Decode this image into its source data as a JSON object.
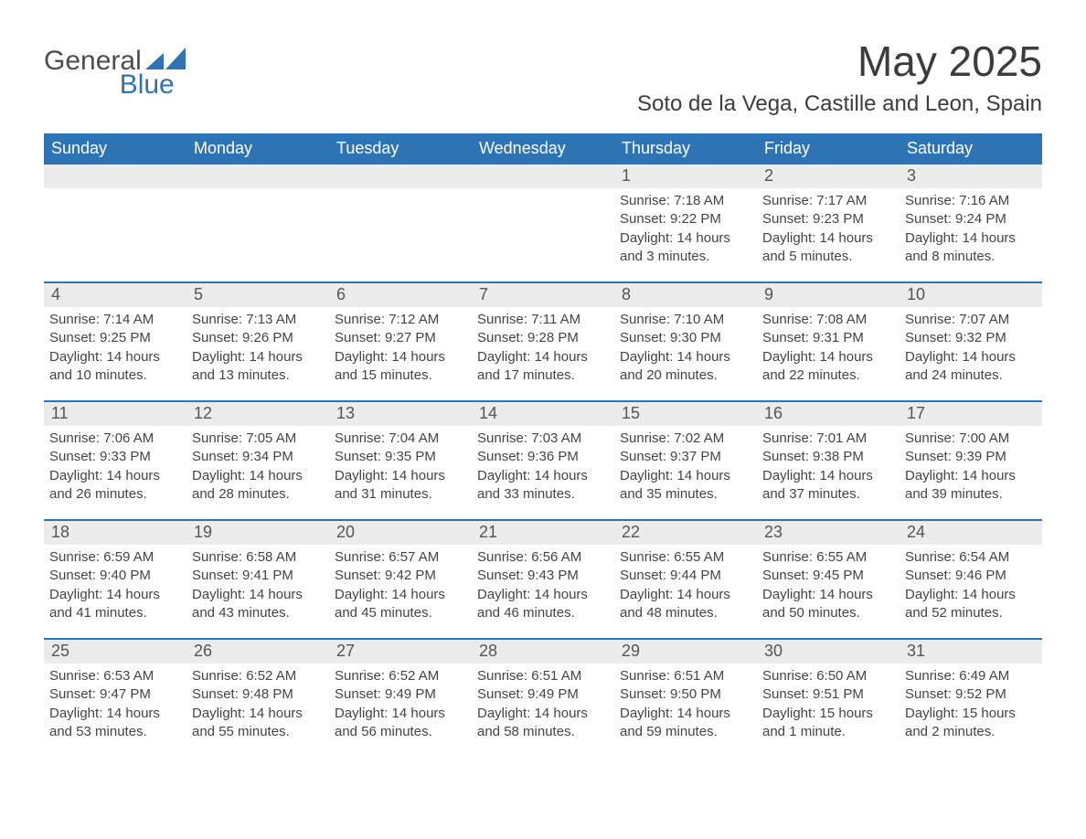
{
  "brand": {
    "word1": "General",
    "word2": "Blue"
  },
  "colors": {
    "accent": "#2e74b5",
    "header_text": "#ffffff",
    "datebar_bg": "#ececec",
    "text": "#3f3f3f",
    "background": "#ffffff"
  },
  "title": "May 2025",
  "location": "Soto de la Vega, Castille and Leon, Spain",
  "days_of_week": [
    "Sunday",
    "Monday",
    "Tuesday",
    "Wednesday",
    "Thursday",
    "Friday",
    "Saturday"
  ],
  "weeks": [
    [
      {
        "blank": true
      },
      {
        "blank": true
      },
      {
        "blank": true
      },
      {
        "blank": true
      },
      {
        "n": "1",
        "sr": "7:18 AM",
        "ss": "9:22 PM",
        "dl": "14 hours and 3 minutes."
      },
      {
        "n": "2",
        "sr": "7:17 AM",
        "ss": "9:23 PM",
        "dl": "14 hours and 5 minutes."
      },
      {
        "n": "3",
        "sr": "7:16 AM",
        "ss": "9:24 PM",
        "dl": "14 hours and 8 minutes."
      }
    ],
    [
      {
        "n": "4",
        "sr": "7:14 AM",
        "ss": "9:25 PM",
        "dl": "14 hours and 10 minutes."
      },
      {
        "n": "5",
        "sr": "7:13 AM",
        "ss": "9:26 PM",
        "dl": "14 hours and 13 minutes."
      },
      {
        "n": "6",
        "sr": "7:12 AM",
        "ss": "9:27 PM",
        "dl": "14 hours and 15 minutes."
      },
      {
        "n": "7",
        "sr": "7:11 AM",
        "ss": "9:28 PM",
        "dl": "14 hours and 17 minutes."
      },
      {
        "n": "8",
        "sr": "7:10 AM",
        "ss": "9:30 PM",
        "dl": "14 hours and 20 minutes."
      },
      {
        "n": "9",
        "sr": "7:08 AM",
        "ss": "9:31 PM",
        "dl": "14 hours and 22 minutes."
      },
      {
        "n": "10",
        "sr": "7:07 AM",
        "ss": "9:32 PM",
        "dl": "14 hours and 24 minutes."
      }
    ],
    [
      {
        "n": "11",
        "sr": "7:06 AM",
        "ss": "9:33 PM",
        "dl": "14 hours and 26 minutes."
      },
      {
        "n": "12",
        "sr": "7:05 AM",
        "ss": "9:34 PM",
        "dl": "14 hours and 28 minutes."
      },
      {
        "n": "13",
        "sr": "7:04 AM",
        "ss": "9:35 PM",
        "dl": "14 hours and 31 minutes."
      },
      {
        "n": "14",
        "sr": "7:03 AM",
        "ss": "9:36 PM",
        "dl": "14 hours and 33 minutes."
      },
      {
        "n": "15",
        "sr": "7:02 AM",
        "ss": "9:37 PM",
        "dl": "14 hours and 35 minutes."
      },
      {
        "n": "16",
        "sr": "7:01 AM",
        "ss": "9:38 PM",
        "dl": "14 hours and 37 minutes."
      },
      {
        "n": "17",
        "sr": "7:00 AM",
        "ss": "9:39 PM",
        "dl": "14 hours and 39 minutes."
      }
    ],
    [
      {
        "n": "18",
        "sr": "6:59 AM",
        "ss": "9:40 PM",
        "dl": "14 hours and 41 minutes."
      },
      {
        "n": "19",
        "sr": "6:58 AM",
        "ss": "9:41 PM",
        "dl": "14 hours and 43 minutes."
      },
      {
        "n": "20",
        "sr": "6:57 AM",
        "ss": "9:42 PM",
        "dl": "14 hours and 45 minutes."
      },
      {
        "n": "21",
        "sr": "6:56 AM",
        "ss": "9:43 PM",
        "dl": "14 hours and 46 minutes."
      },
      {
        "n": "22",
        "sr": "6:55 AM",
        "ss": "9:44 PM",
        "dl": "14 hours and 48 minutes."
      },
      {
        "n": "23",
        "sr": "6:55 AM",
        "ss": "9:45 PM",
        "dl": "14 hours and 50 minutes."
      },
      {
        "n": "24",
        "sr": "6:54 AM",
        "ss": "9:46 PM",
        "dl": "14 hours and 52 minutes."
      }
    ],
    [
      {
        "n": "25",
        "sr": "6:53 AM",
        "ss": "9:47 PM",
        "dl": "14 hours and 53 minutes."
      },
      {
        "n": "26",
        "sr": "6:52 AM",
        "ss": "9:48 PM",
        "dl": "14 hours and 55 minutes."
      },
      {
        "n": "27",
        "sr": "6:52 AM",
        "ss": "9:49 PM",
        "dl": "14 hours and 56 minutes."
      },
      {
        "n": "28",
        "sr": "6:51 AM",
        "ss": "9:49 PM",
        "dl": "14 hours and 58 minutes."
      },
      {
        "n": "29",
        "sr": "6:51 AM",
        "ss": "9:50 PM",
        "dl": "14 hours and 59 minutes."
      },
      {
        "n": "30",
        "sr": "6:50 AM",
        "ss": "9:51 PM",
        "dl": "15 hours and 1 minute."
      },
      {
        "n": "31",
        "sr": "6:49 AM",
        "ss": "9:52 PM",
        "dl": "15 hours and 2 minutes."
      }
    ]
  ],
  "labels": {
    "sunrise": "Sunrise:",
    "sunset": "Sunset:",
    "daylight": "Daylight:"
  }
}
